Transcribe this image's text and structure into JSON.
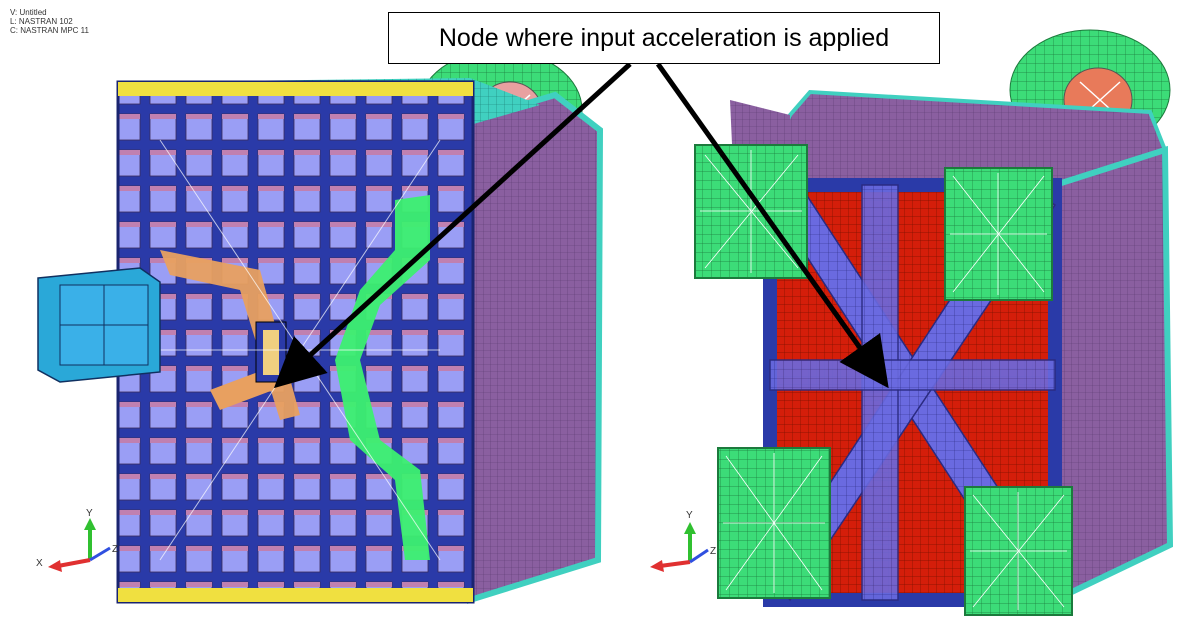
{
  "header": {
    "view_line": "V: Untitled",
    "load_line": "L: NASTRAN 102",
    "constraint_line": "C: NASTRAN MPC 11"
  },
  "callout": {
    "text": "Node where input acceleration is applied"
  },
  "left_axes": {
    "y": "Y",
    "x": "X",
    "z": "Z"
  },
  "right_axes": {
    "y": "Y",
    "z": "Z"
  },
  "colors": {
    "panel_purple": "#8a5fa0",
    "cell_lavender": "#9a9ef5",
    "frame_blue": "#2a3aa8",
    "mesh_red": "#d41e0a",
    "pad_green": "#3cdc78",
    "accent_yellow": "#f0e040",
    "accent_orange": "#e8a060",
    "accent_cyan": "#40d0c0",
    "arrow_black": "#000000"
  }
}
